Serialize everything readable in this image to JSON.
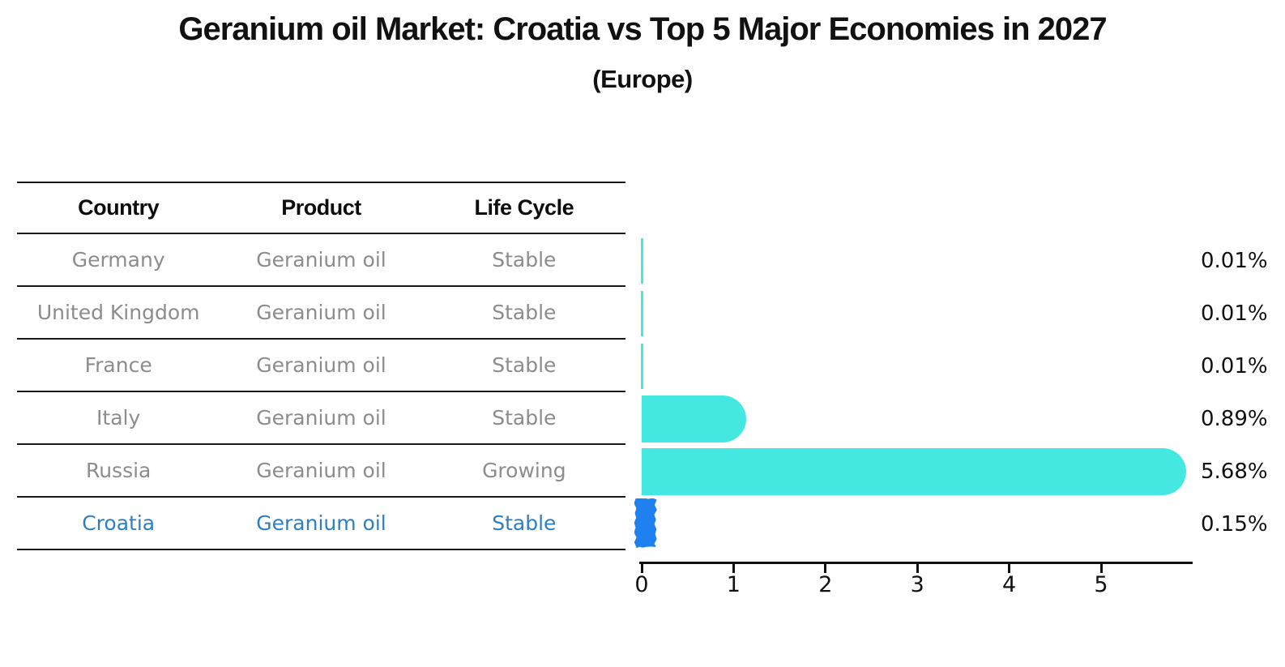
{
  "chart": {
    "title": "Geranium oil Market: Croatia vs Top 5 Major Economies in 2027",
    "subtitle": "(Europe)"
  },
  "table": {
    "headers": [
      "Country",
      "Product",
      "Life Cycle"
    ],
    "rows": [
      {
        "country": "Germany",
        "product": "Geranium oil",
        "life_cycle": "Stable",
        "share_label": "0.01%",
        "value": 0.01,
        "highlight": false
      },
      {
        "country": "United Kingdom",
        "product": "Geranium oil",
        "life_cycle": "Stable",
        "share_label": "0.01%",
        "value": 0.01,
        "highlight": false
      },
      {
        "country": "France",
        "product": "Geranium oil",
        "life_cycle": "Stable",
        "share_label": "0.01%",
        "value": 0.01,
        "highlight": false
      },
      {
        "country": "Italy",
        "product": "Geranium oil",
        "life_cycle": "Stable",
        "share_label": "0.89%",
        "value": 0.89,
        "highlight": false
      },
      {
        "country": "Russia",
        "product": "Geranium oil",
        "life_cycle": "Growing",
        "share_label": "5.68%",
        "value": 5.68,
        "highlight": false
      },
      {
        "country": "Croatia",
        "product": "Geranium oil",
        "life_cycle": "Stable",
        "share_label": "0.15%",
        "value": 0.15,
        "highlight": true
      }
    ]
  },
  "chart_data": {
    "type": "bar",
    "orientation": "horizontal",
    "title": "Geranium oil Market: Croatia vs Top 5 Major Economies in 2027",
    "subtitle": "(Europe)",
    "categories": [
      "Germany",
      "United Kingdom",
      "France",
      "Italy",
      "Russia",
      "Croatia"
    ],
    "values": [
      0.01,
      0.01,
      0.01,
      0.89,
      5.68,
      0.15
    ],
    "data_labels": [
      "0.01%",
      "0.01%",
      "0.01%",
      "0.89%",
      "5.68%",
      "0.15%"
    ],
    "x_ticks": [
      0,
      1,
      2,
      3,
      4,
      5
    ],
    "xlim": [
      0,
      6
    ],
    "grid": false,
    "legend": false,
    "bar_color": "#45e8e0",
    "highlight_color": "#1f80f0",
    "highlight_index": 5,
    "highlight_text_color": "#2d7fc1",
    "row_text_color": "#8c8c8c",
    "axis_color": "#111111"
  }
}
